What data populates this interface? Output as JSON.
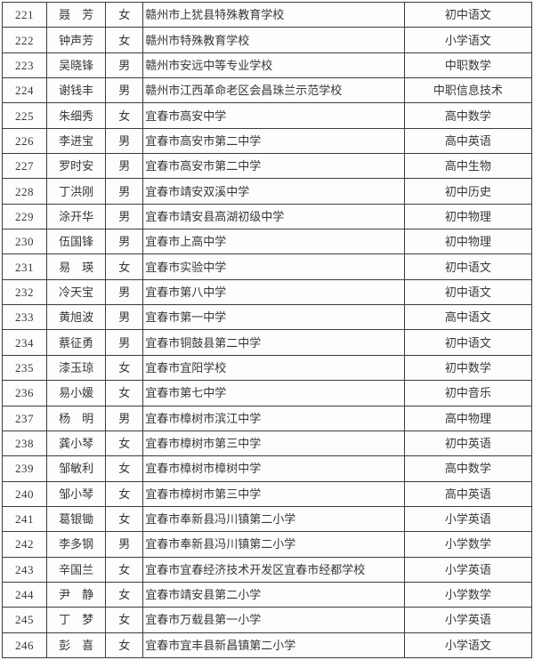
{
  "table": {
    "rows": [
      {
        "number": "221",
        "name": "聂　芳",
        "gender": "女",
        "school": "赣州市上犹县特殊教育学校",
        "subject": "初中语文"
      },
      {
        "number": "222",
        "name": "钟声芳",
        "gender": "女",
        "school": "赣州市特殊教育学校",
        "subject": "小学语文"
      },
      {
        "number": "223",
        "name": "吴晓锋",
        "gender": "男",
        "school": "赣州市安远中等专业学校",
        "subject": "中职数学"
      },
      {
        "number": "224",
        "name": "谢钱丰",
        "gender": "男",
        "school": "赣州市江西革命老区会昌珠兰示范学校",
        "subject": "中职信息技术"
      },
      {
        "number": "225",
        "name": "朱细秀",
        "gender": "女",
        "school": "宜春市高安中学",
        "subject": "高中数学"
      },
      {
        "number": "226",
        "name": "李进宝",
        "gender": "男",
        "school": "宜春市高安市第二中学",
        "subject": "高中英语"
      },
      {
        "number": "227",
        "name": "罗时安",
        "gender": "男",
        "school": "宜春市高安市第二中学",
        "subject": "高中生物"
      },
      {
        "number": "228",
        "name": "丁洪刚",
        "gender": "男",
        "school": "宜春市靖安双溪中学",
        "subject": "初中历史"
      },
      {
        "number": "229",
        "name": "涂开华",
        "gender": "男",
        "school": "宜春市靖安县高湖初级中学",
        "subject": "初中物理"
      },
      {
        "number": "230",
        "name": "伍国锋",
        "gender": "男",
        "school": "宜春市上高中学",
        "subject": "初中物理"
      },
      {
        "number": "231",
        "name": "易　瑛",
        "gender": "女",
        "school": "宜春市实验中学",
        "subject": "初中语文"
      },
      {
        "number": "232",
        "name": "冷天宝",
        "gender": "男",
        "school": "宜春市第八中学",
        "subject": "初中语文"
      },
      {
        "number": "233",
        "name": "黄旭波",
        "gender": "男",
        "school": "宜春市第一中学",
        "subject": "高中语文"
      },
      {
        "number": "234",
        "name": "蔡征勇",
        "gender": "男",
        "school": "宜春市铜鼓县第二中学",
        "subject": "初中语文"
      },
      {
        "number": "235",
        "name": "漆玉琼",
        "gender": "女",
        "school": "宜春市宜阳学校",
        "subject": "初中数学"
      },
      {
        "number": "236",
        "name": "易小媛",
        "gender": "女",
        "school": "宜春市第七中学",
        "subject": "初中音乐"
      },
      {
        "number": "237",
        "name": "杨　明",
        "gender": "男",
        "school": "宜春市樟树市滨江中学",
        "subject": "高中物理"
      },
      {
        "number": "238",
        "name": "龚小琴",
        "gender": "女",
        "school": "宜春市樟树市第三中学",
        "subject": "初中英语"
      },
      {
        "number": "239",
        "name": "邹敏利",
        "gender": "女",
        "school": "宜春市樟树市樟树中学",
        "subject": "高中数学"
      },
      {
        "number": "240",
        "name": "邹小琴",
        "gender": "女",
        "school": "宜春市樟树市第三中学",
        "subject": "高中英语"
      },
      {
        "number": "241",
        "name": "葛银锄",
        "gender": "女",
        "school": "宜春市奉新县冯川镇第二小学",
        "subject": "小学英语"
      },
      {
        "number": "242",
        "name": "李多钢",
        "gender": "男",
        "school": "宜春市奉新县冯川镇第二小学",
        "subject": "小学数学"
      },
      {
        "number": "243",
        "name": "辛国兰",
        "gender": "女",
        "school": "宜春市宜春经济技术开发区宜春市经都学校",
        "subject": "小学英语"
      },
      {
        "number": "244",
        "name": "尹　静",
        "gender": "女",
        "school": "宜春市靖安县第二小学",
        "subject": "小学数学"
      },
      {
        "number": "245",
        "name": "丁　梦",
        "gender": "女",
        "school": "宜春市万载县第一小学",
        "subject": "小学英语"
      },
      {
        "number": "246",
        "name": "彭　喜",
        "gender": "女",
        "school": "宜春市宜丰县新昌镇第二小学",
        "subject": "小学语文"
      }
    ]
  },
  "colors": {
    "background": "#fdfdfd",
    "border": "#3c3c3c",
    "text": "#3b3632",
    "subject_text": "#6b4436"
  }
}
